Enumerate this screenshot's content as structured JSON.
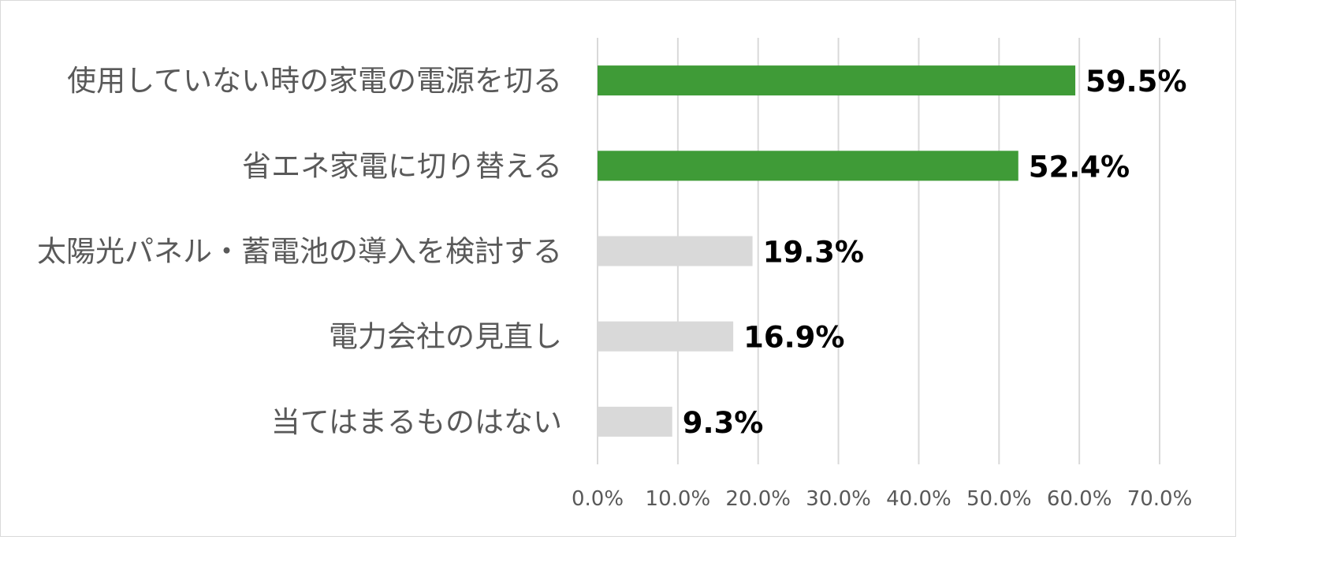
{
  "chart_data": {
    "type": "bar",
    "orientation": "horizontal",
    "categories": [
      "使用していない時の家電の電源を切る",
      "省エネ家電に切り替える",
      "太陽光パネル・蓄電池の導入を検討する",
      "電力会社の見直し",
      "当てはまるものはない"
    ],
    "values": [
      59.5,
      52.4,
      19.3,
      16.9,
      9.3
    ],
    "data_labels": [
      "59.5%",
      "52.4%",
      "19.3%",
      "16.9%",
      "9.3%"
    ],
    "bar_colors": [
      "#3f9b37",
      "#3f9b37",
      "#d9d9d9",
      "#d9d9d9",
      "#d9d9d9"
    ],
    "xlim": [
      0,
      70
    ],
    "ticks": [
      0,
      10,
      20,
      30,
      40,
      50,
      60,
      70
    ],
    "tick_labels": [
      "0.0%",
      "10.0%",
      "20.0%",
      "30.0%",
      "40.0%",
      "50.0%",
      "60.0%",
      "70.0%"
    ],
    "grid": "vertical",
    "legend": "none",
    "title": "",
    "xlabel": "",
    "ylabel": ""
  }
}
